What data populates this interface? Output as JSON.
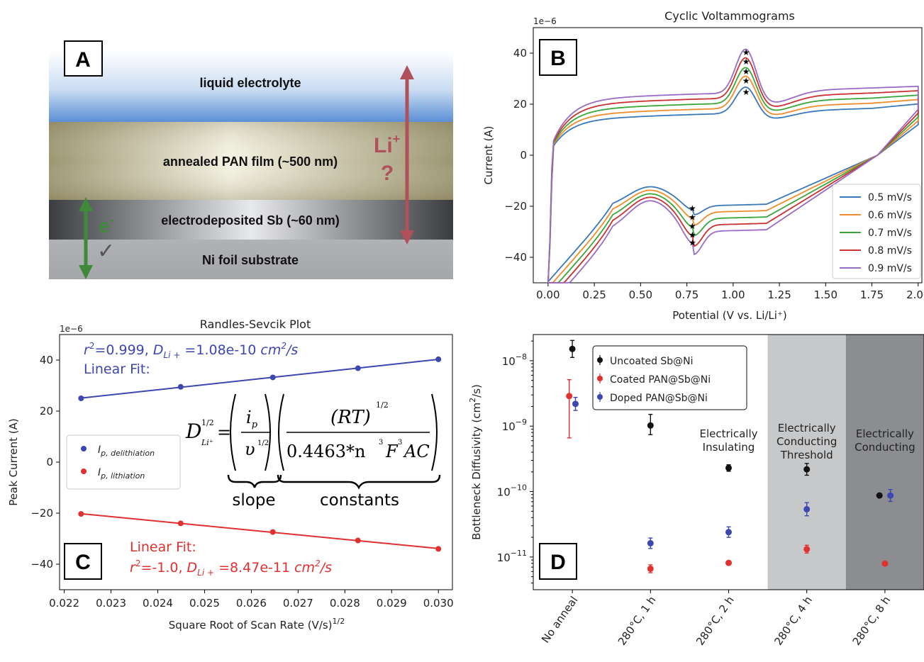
{
  "panel_a": {
    "letter": "A",
    "layers": [
      "liquid electrolyte",
      "annealed PAN film (~500 nm)",
      "electrodeposited Sb (~60 nm)",
      "Ni foil substrate"
    ],
    "li_label": "Li",
    "li_sup": "+",
    "question": "?",
    "e_label": "e",
    "e_sup": "-",
    "check": "✓"
  },
  "chart_data": [
    {
      "type": "line",
      "panel": "B",
      "title": "Cyclic Voltammograms",
      "xlabel": "Potential (V vs. Li/Li⁺)",
      "ylabel": "Current (A)",
      "yscale_label": "1e−6",
      "xlim": [
        -0.08,
        2.02
      ],
      "ylim": [
        -50,
        50
      ],
      "xticks": [
        0.0,
        0.25,
        0.5,
        0.75,
        1.0,
        1.25,
        1.5,
        1.75,
        2.0
      ],
      "xtick_labels": [
        "0.00",
        "0.25",
        "0.50",
        "0.75",
        "1.00",
        "1.25",
        "1.50",
        "1.75",
        "2.00"
      ],
      "yticks": [
        40,
        20,
        0,
        -20,
        -40
      ],
      "ytick_labels": [
        "40",
        "20",
        "0",
        "−20",
        "−40"
      ],
      "legend_position": "lower-right",
      "series": [
        {
          "name": "0.5 mV/s",
          "color": "#3a78b8",
          "base_up": 14,
          "peak_up": 25,
          "base_down": -18,
          "peak_down": -20.5
        },
        {
          "name": "0.6 mV/s",
          "color": "#f08c2c",
          "base_up": 16,
          "peak_up": 29.5,
          "base_down": -20.5,
          "peak_down": -24
        },
        {
          "name": "0.7 mV/s",
          "color": "#3aa63a",
          "base_up": 18,
          "peak_up": 33,
          "base_down": -23,
          "peak_down": -27.5
        },
        {
          "name": "0.8 mV/s",
          "color": "#c83232",
          "base_up": 20,
          "peak_up": 37,
          "base_down": -25.5,
          "peak_down": -31
        },
        {
          "name": "0.9 mV/s",
          "color": "#9a6cc4",
          "base_up": 22,
          "peak_up": 40.5,
          "base_down": -28,
          "peak_down": -34
        }
      ],
      "peak_markers": {
        "anodic_potential": 1.07,
        "cathodic_potential": 0.78,
        "anodic": [
          25,
          29.5,
          33,
          37,
          40.5
        ],
        "cathodic": [
          -20.5,
          -24,
          -27.5,
          -31,
          -34
        ]
      }
    },
    {
      "type": "scatter",
      "panel": "C",
      "title": "Randles-Sevcik Plot",
      "xlabel": "Square Root of Scan Rate (V/s)",
      "xlabel_sup": "1/2",
      "ylabel": "Peak Current (A)",
      "yscale_label": "1e−6",
      "xlim": [
        0.0219,
        0.0303
      ],
      "ylim": [
        -50,
        50
      ],
      "xticks": [
        0.022,
        0.023,
        0.024,
        0.025,
        0.026,
        0.027,
        0.028,
        0.029,
        0.03
      ],
      "xtick_labels": [
        "0.022",
        "0.023",
        "0.024",
        "0.025",
        "0.026",
        "0.027",
        "0.028",
        "0.029",
        "0.030"
      ],
      "yticks": [
        40,
        20,
        0,
        -20,
        -40
      ],
      "ytick_labels": [
        "40",
        "20",
        "0",
        "−20",
        "−40"
      ],
      "legend_position": "center-left",
      "series": [
        {
          "name": "I",
          "sub": "p, delithiation",
          "color": "#3c47b0",
          "x": [
            0.02236,
            0.02449,
            0.02646,
            0.02828,
            0.03
          ],
          "y": [
            25,
            29.5,
            33.2,
            36.8,
            40.3
          ]
        },
        {
          "name": "I",
          "sub": "p, lithiation",
          "color": "#e03030",
          "x": [
            0.02236,
            0.02449,
            0.02646,
            0.02828,
            0.03
          ],
          "y": [
            -20.3,
            -24.0,
            -27.4,
            -30.7,
            -34.0
          ]
        }
      ],
      "fit_blue": {
        "line1": "=0.999, ",
        "r": "r",
        "r_sup": "2",
        "d": "D",
        "d_sub": "Li +",
        "value": " =1.08e-10 ",
        "unit": "cm",
        "unit_sup": "2",
        "unit_tail": "/s",
        "line2": "Linear Fit:"
      },
      "fit_red": {
        "line1": "Linear Fit:",
        "r": "r",
        "r_sup": "2",
        "value2": "=-1.0, ",
        "d": "D",
        "d_sub": "Li +",
        "value": " =8.47e-11 ",
        "unit": "cm",
        "unit_sup": "2",
        "unit_tail": "/s"
      },
      "equation": {
        "slope": "slope",
        "constants": "constants",
        "d": "D",
        "exp": "1/2",
        "li": "Li⁺",
        "ip": "i",
        "ip_sub": "p",
        "nu": "υ",
        "rt": "(RT)",
        "denominator": "0.4463*n",
        "f": "F",
        "ac": "AC"
      }
    },
    {
      "type": "scatter",
      "panel": "D",
      "ylabel": "Bottleneck Diffusivity (cm",
      "ylabel_sup": "2",
      "ylabel_tail": "/s)",
      "yscale": "log",
      "ylim_log10": [
        -11.5,
        -7.6
      ],
      "yticks_log10": [
        -8,
        -9,
        -10,
        -11
      ],
      "ytick_base": "10",
      "ytick_exps": [
        "−8",
        "−9",
        "−10",
        "−11"
      ],
      "categories": [
        "No anneal",
        "280°C, 1 h",
        "280°C, 2 h",
        "280°C, 4 h",
        "280°C, 8 h"
      ],
      "legend_position": "top-center",
      "series": [
        {
          "name": "Uncoated Sb@Ni",
          "color": "#111111",
          "offset": [
            0,
            0,
            0,
            0,
            -0.07
          ],
          "log10": [
            -7.82,
            -8.99,
            -9.64,
            -9.66,
            -10.06
          ],
          "err_lo": [
            0.13,
            0.14,
            0.05,
            0.09,
            0.0
          ],
          "err_hi": [
            0.13,
            0.17,
            0.05,
            0.09,
            0.0
          ]
        },
        {
          "name": "Coated PAN@Sb@Ni",
          "color": "#e03030",
          "offset": [
            -0.04,
            0,
            0,
            0,
            0
          ],
          "log10": [
            -8.54,
            -11.18,
            -11.09,
            -10.88,
            -11.1
          ],
          "err_lo": [
            0.64,
            0.06,
            0.0,
            0.06,
            0.0
          ],
          "err_hi": [
            0.25,
            0.06,
            0.0,
            0.06,
            0.0
          ]
        },
        {
          "name": "Doped PAN@Sb@Ni",
          "color": "#3c47b0",
          "offset": [
            0.04,
            0,
            0,
            0,
            0.07
          ],
          "log10": [
            -8.66,
            -10.79,
            -10.62,
            -10.27,
            -10.06
          ],
          "err_lo": [
            0.1,
            0.08,
            0.08,
            0.1,
            0.09
          ],
          "err_hi": [
            0.1,
            0.08,
            0.08,
            0.1,
            0.09
          ]
        }
      ],
      "regions": [
        {
          "label_lines": [
            "Electrically",
            "Insulating"
          ],
          "color": "#ffffff"
        },
        {
          "label_lines": [
            "Electrically",
            "Conducting",
            "Threshold"
          ],
          "color": "#c7c8ca"
        },
        {
          "label_lines": [
            "Electrically",
            "Conducting"
          ],
          "color": "#8b8d90"
        }
      ]
    }
  ],
  "panel_letters": {
    "b": "B",
    "c": "C",
    "d": "D"
  }
}
